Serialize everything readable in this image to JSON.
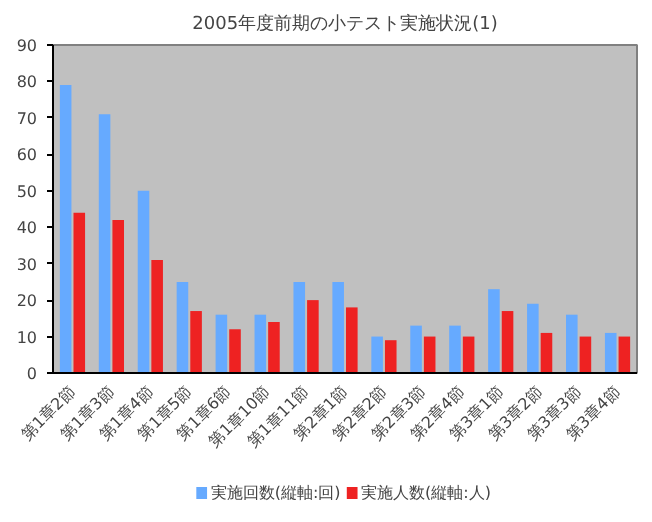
{
  "chart_data": {
    "type": "bar",
    "title": "2005年度前期の小テスト実施状況(1)",
    "categories": [
      "第1章2節",
      "第1章3節",
      "第1章4節",
      "第1章5節",
      "第1章6節",
      "第1章10節",
      "第1章11節",
      "第2章1節",
      "第2章2節",
      "第2章3節",
      "第2章4節",
      "第3章1節",
      "第3章2節",
      "第3章3節",
      "第3章4節"
    ],
    "series": [
      {
        "name": "実施回数(縦軸:回)",
        "color": "#66aaff",
        "values": [
          79,
          71,
          50,
          25,
          16,
          16,
          25,
          25,
          10,
          13,
          13,
          23,
          19,
          16,
          11
        ]
      },
      {
        "name": "実施人数(縦軸:人)",
        "color": "#ee2222",
        "values": [
          44,
          42,
          31,
          17,
          12,
          14,
          20,
          18,
          9,
          10,
          10,
          17,
          11,
          10,
          10
        ]
      }
    ],
    "ylim": [
      0,
      90
    ],
    "yticks": [
      0,
      10,
      20,
      30,
      40,
      50,
      60,
      70,
      80,
      90
    ],
    "grid": false,
    "legend": "bottom"
  }
}
